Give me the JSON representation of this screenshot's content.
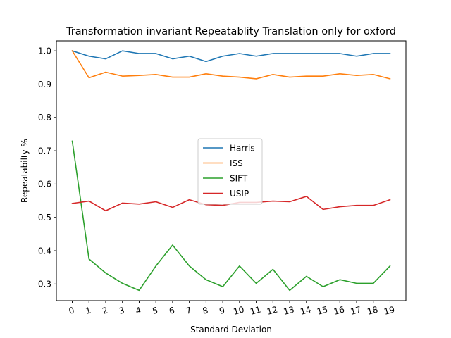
{
  "chart_data": {
    "type": "line",
    "title": "Transformation invariant Repeatablity Translation only for oxford",
    "xlabel": "Standard Deviation",
    "ylabel": "Repeatabilty %",
    "x": [
      0,
      1,
      2,
      3,
      4,
      5,
      6,
      7,
      8,
      9,
      10,
      11,
      12,
      13,
      14,
      15,
      16,
      17,
      18,
      19
    ],
    "xtick_labels": [
      "0",
      "1",
      "2",
      "3",
      "4",
      "5",
      "6",
      "7",
      "8",
      "9",
      "10",
      "11",
      "12",
      "13",
      "14",
      "15",
      "16",
      "17",
      "18",
      "19"
    ],
    "yticks": [
      0.3,
      0.4,
      0.5,
      0.6,
      0.7,
      0.8,
      0.9,
      1.0
    ],
    "ytick_labels": [
      "0.3",
      "0.4",
      "0.5",
      "0.6",
      "0.7",
      "0.8",
      "0.9",
      "1.0"
    ],
    "ylim": [
      0.25,
      1.03
    ],
    "xlim": [
      -0.95,
      19.95
    ],
    "grid": false,
    "legend_position": "center",
    "series": [
      {
        "name": "Harris",
        "color": "#1f77b4",
        "values": [
          1.0,
          0.984,
          0.976,
          1.0,
          0.992,
          0.992,
          0.976,
          0.984,
          0.968,
          0.984,
          0.992,
          0.984,
          0.992,
          0.992,
          0.992,
          0.992,
          0.992,
          0.984,
          0.992,
          0.992
        ]
      },
      {
        "name": "ISS",
        "color": "#ff7f0e",
        "values": [
          1.0,
          0.919,
          0.936,
          0.924,
          0.926,
          0.929,
          0.921,
          0.921,
          0.931,
          0.924,
          0.921,
          0.916,
          0.929,
          0.921,
          0.924,
          0.924,
          0.931,
          0.926,
          0.929,
          0.916
        ]
      },
      {
        "name": "SIFT",
        "color": "#2ca02c",
        "values": [
          0.729,
          0.375,
          0.333,
          0.302,
          0.281,
          0.354,
          0.417,
          0.354,
          0.313,
          0.292,
          0.354,
          0.302,
          0.344,
          0.281,
          0.323,
          0.292,
          0.313,
          0.302,
          0.302,
          0.354
        ]
      },
      {
        "name": "USIP",
        "color": "#d62728",
        "values": [
          0.542,
          0.549,
          0.52,
          0.543,
          0.54,
          0.547,
          0.53,
          0.553,
          0.538,
          0.536,
          0.545,
          0.545,
          0.549,
          0.547,
          0.563,
          0.524,
          0.532,
          0.536,
          0.536,
          0.553
        ]
      }
    ]
  }
}
